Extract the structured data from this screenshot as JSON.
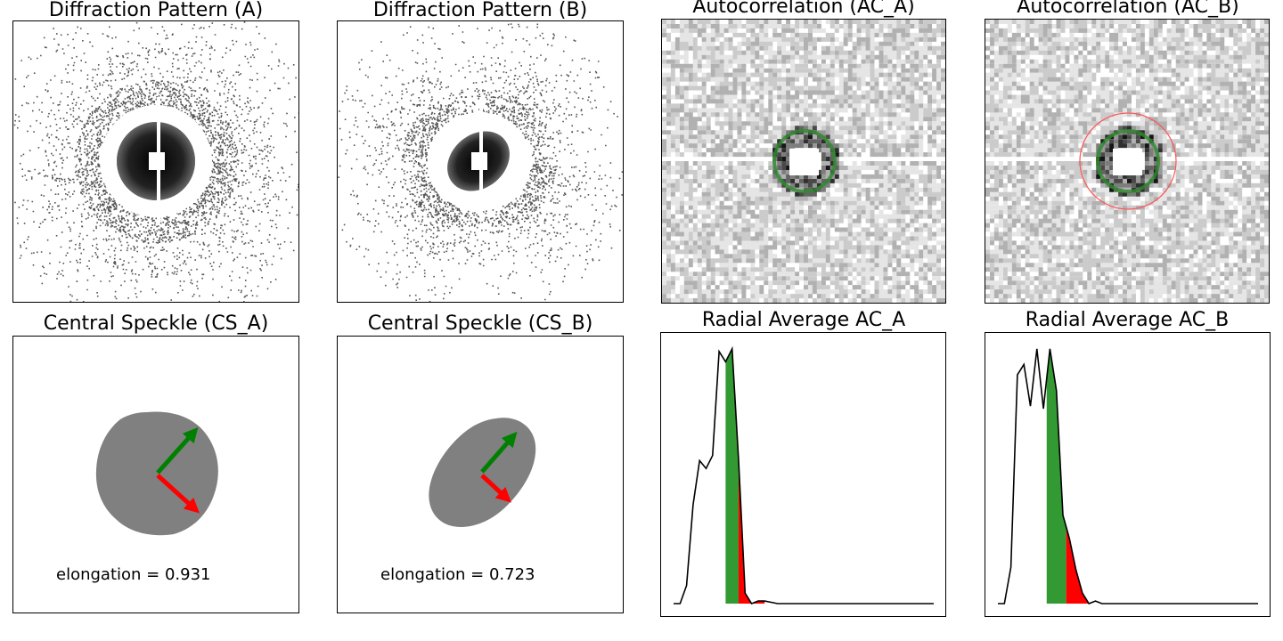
{
  "panels": {
    "diffraction_a": {
      "title": "Diffraction Pattern (A)"
    },
    "diffraction_b": {
      "title": "Diffraction Pattern (B)"
    },
    "autocorr_a": {
      "title": "Autocorrelation (AC_A)"
    },
    "autocorr_b": {
      "title": "Autocorrelation (AC_B)"
    },
    "speckle_a": {
      "title": "Central Speckle (CS_A)",
      "elongation_label": "elongation = 0.931"
    },
    "speckle_b": {
      "title": "Central Speckle (CS_B)",
      "elongation_label": "elongation = 0.723"
    },
    "radial_a": {
      "title": "Radial Average AC_A"
    },
    "radial_b": {
      "title": "Radial Average AC_B"
    }
  },
  "colors": {
    "speckle_fill": "#808080",
    "arrow_major": "#008000",
    "arrow_minor": "#ff0000",
    "ring_green": "#2e8b2e",
    "ring_red": "#ff5555",
    "fill_green": "#339933",
    "fill_red": "#ff0000",
    "line": "#000000"
  },
  "chart_data": [
    {
      "type": "line",
      "name": "radial_a",
      "title": "Radial Average AC_A",
      "x": [
        0,
        1,
        2,
        3,
        4,
        5,
        6,
        7,
        8,
        9,
        10,
        11,
        12,
        13,
        14,
        15,
        16,
        17,
        18,
        19,
        20,
        21,
        22,
        23,
        24,
        25,
        26,
        27,
        28,
        29,
        30,
        31,
        32,
        33,
        34,
        35,
        36,
        37,
        38,
        39,
        40
      ],
      "values": [
        0.0,
        0.0,
        0.07,
        0.38,
        0.55,
        0.52,
        0.57,
        0.97,
        0.93,
        0.98,
        0.55,
        0.04,
        0.0,
        0.01,
        0.01,
        0.005,
        0.0,
        0.0,
        0.0,
        0.0,
        0.0,
        0.0,
        0.0,
        0.0,
        0.0,
        0.0,
        0.0,
        0.0,
        0.0,
        0.0,
        0.0,
        0.0,
        0.0,
        0.0,
        0.0,
        0.0,
        0.0,
        0.0,
        0.0,
        0.0,
        0.0
      ],
      "green_range": [
        8,
        10
      ],
      "red_range": [
        10,
        14
      ]
    },
    {
      "type": "line",
      "name": "radial_b",
      "title": "Radial Average AC_B",
      "x": [
        0,
        1,
        2,
        3,
        4,
        5,
        6,
        7,
        8,
        9,
        10,
        11,
        12,
        13,
        14,
        15,
        16,
        17,
        18,
        19,
        20,
        21,
        22,
        23,
        24,
        25,
        26,
        27,
        28,
        29,
        30,
        31,
        32,
        33,
        34,
        35,
        36,
        37,
        38,
        39,
        40
      ],
      "values": [
        0.0,
        0.0,
        0.14,
        0.88,
        0.92,
        0.76,
        0.98,
        0.75,
        0.98,
        0.82,
        0.34,
        0.25,
        0.13,
        0.04,
        0.0,
        0.01,
        0.0,
        0.0,
        0.0,
        0.0,
        0.0,
        0.0,
        0.0,
        0.0,
        0.0,
        0.0,
        0.0,
        0.0,
        0.0,
        0.0,
        0.0,
        0.0,
        0.0,
        0.0,
        0.0,
        0.0,
        0.0,
        0.0,
        0.0,
        0.0,
        0.0
      ],
      "green_range": [
        7.5,
        10.5
      ],
      "red_range": [
        10.5,
        14
      ]
    }
  ]
}
